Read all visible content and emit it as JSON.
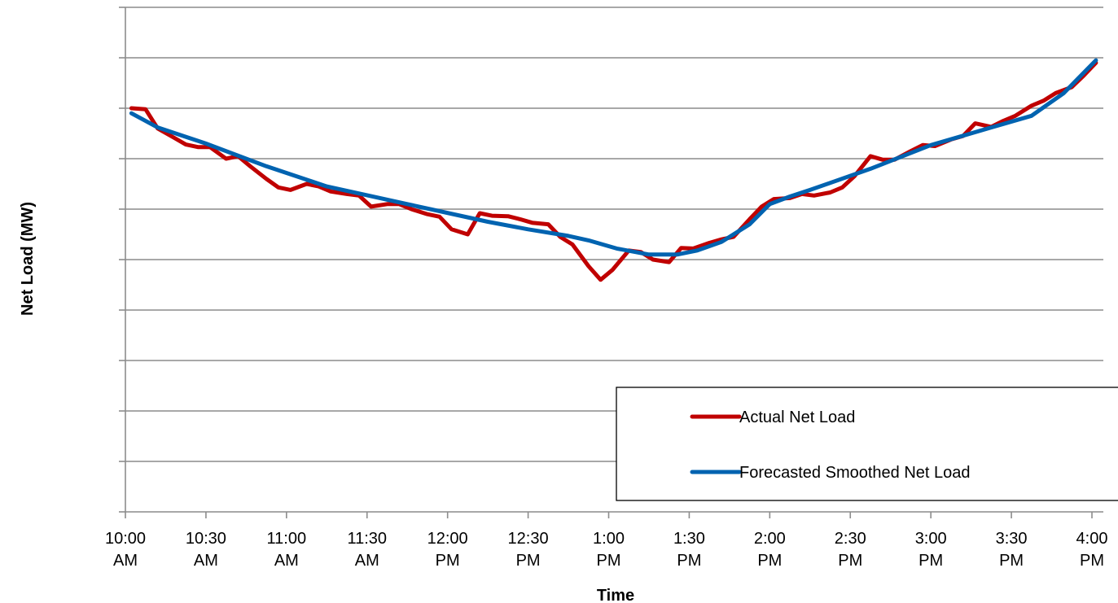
{
  "chart_data": {
    "type": "line",
    "title": "",
    "xlabel": "Time",
    "ylabel": "Net Load (MW)",
    "y_tick_labels_shown": false,
    "y_gridlines": 10,
    "grid": true,
    "legend_position": "bottom-right",
    "x_ticks": [
      {
        "line1": "10:00",
        "line2": "AM"
      },
      {
        "line1": "10:30",
        "line2": "AM"
      },
      {
        "line1": "11:00",
        "line2": "AM"
      },
      {
        "line1": "11:30",
        "line2": "AM"
      },
      {
        "line1": "12:00",
        "line2": "PM"
      },
      {
        "line1": "12:30",
        "line2": "PM"
      },
      {
        "line1": "1:00",
        "line2": "PM"
      },
      {
        "line1": "1:30",
        "line2": "PM"
      },
      {
        "line1": "2:00",
        "line2": "PM"
      },
      {
        "line1": "2:30",
        "line2": "PM"
      },
      {
        "line1": "3:00",
        "line2": "PM"
      },
      {
        "line1": "3:30",
        "line2": "PM"
      },
      {
        "line1": "4:00",
        "line2": "PM"
      }
    ],
    "x_unit": "minutes after 10:00 AM",
    "y_unit": "gridline divisions (unlabeled axis)",
    "ylim": [
      0,
      10
    ],
    "series": [
      {
        "name": "Actual Net Load",
        "color": "#c00000",
        "points": [
          [
            1.5,
            8.0
          ],
          [
            5,
            7.98
          ],
          [
            8,
            7.6
          ],
          [
            12,
            7.42
          ],
          [
            15,
            7.28
          ],
          [
            18,
            7.23
          ],
          [
            21,
            7.23
          ],
          [
            25,
            7.0
          ],
          [
            28,
            7.05
          ],
          [
            31,
            6.85
          ],
          [
            35,
            6.6
          ],
          [
            38,
            6.43
          ],
          [
            41,
            6.38
          ],
          [
            45,
            6.5
          ],
          [
            48,
            6.45
          ],
          [
            51,
            6.35
          ],
          [
            55,
            6.3
          ],
          [
            58,
            6.27
          ],
          [
            61,
            6.05
          ],
          [
            65,
            6.1
          ],
          [
            68,
            6.1
          ],
          [
            71,
            6.0
          ],
          [
            75,
            5.9
          ],
          [
            78,
            5.85
          ],
          [
            81,
            5.6
          ],
          [
            85,
            5.5
          ],
          [
            88,
            5.92
          ],
          [
            91,
            5.87
          ],
          [
            95,
            5.86
          ],
          [
            98,
            5.8
          ],
          [
            101,
            5.73
          ],
          [
            105,
            5.7
          ],
          [
            108,
            5.45
          ],
          [
            111,
            5.3
          ],
          [
            115,
            4.87
          ],
          [
            118,
            4.6
          ],
          [
            121,
            4.8
          ],
          [
            125,
            5.18
          ],
          [
            128,
            5.15
          ],
          [
            131,
            5.0
          ],
          [
            135,
            4.95
          ],
          [
            138,
            5.23
          ],
          [
            141,
            5.22
          ],
          [
            145,
            5.33
          ],
          [
            148,
            5.4
          ],
          [
            151,
            5.45
          ],
          [
            155,
            5.8
          ],
          [
            158,
            6.05
          ],
          [
            161,
            6.2
          ],
          [
            165,
            6.22
          ],
          [
            168,
            6.3
          ],
          [
            171,
            6.27
          ],
          [
            175,
            6.33
          ],
          [
            178,
            6.43
          ],
          [
            181,
            6.65
          ],
          [
            185,
            7.05
          ],
          [
            188,
            6.98
          ],
          [
            191,
            6.98
          ],
          [
            195,
            7.15
          ],
          [
            198,
            7.27
          ],
          [
            201,
            7.25
          ],
          [
            205,
            7.38
          ],
          [
            208,
            7.45
          ],
          [
            211,
            7.7
          ],
          [
            215,
            7.63
          ],
          [
            218,
            7.75
          ],
          [
            221,
            7.85
          ],
          [
            225,
            8.05
          ],
          [
            228,
            8.15
          ],
          [
            231,
            8.3
          ],
          [
            235,
            8.42
          ],
          [
            238,
            8.65
          ],
          [
            241,
            8.9
          ]
        ]
      },
      {
        "name": "Forecasted Smoothed Net Load",
        "color": "#0063b0",
        "points": [
          [
            1.5,
            7.9
          ],
          [
            8,
            7.62
          ],
          [
            20,
            7.3
          ],
          [
            35,
            6.85
          ],
          [
            50,
            6.45
          ],
          [
            70,
            6.1
          ],
          [
            90,
            5.75
          ],
          [
            100,
            5.6
          ],
          [
            110,
            5.47
          ],
          [
            115,
            5.38
          ],
          [
            122,
            5.22
          ],
          [
            130,
            5.1
          ],
          [
            137,
            5.1
          ],
          [
            142,
            5.18
          ],
          [
            148,
            5.35
          ],
          [
            155,
            5.7
          ],
          [
            160,
            6.1
          ],
          [
            165,
            6.25
          ],
          [
            170,
            6.38
          ],
          [
            185,
            6.8
          ],
          [
            200,
            7.27
          ],
          [
            215,
            7.62
          ],
          [
            225,
            7.85
          ],
          [
            233,
            8.3
          ],
          [
            241,
            8.95
          ]
        ]
      }
    ],
    "legend": [
      {
        "label": "Actual Net Load",
        "color": "#c00000"
      },
      {
        "label": "Forecasted Smoothed Net Load",
        "color": "#0063b0"
      }
    ]
  }
}
